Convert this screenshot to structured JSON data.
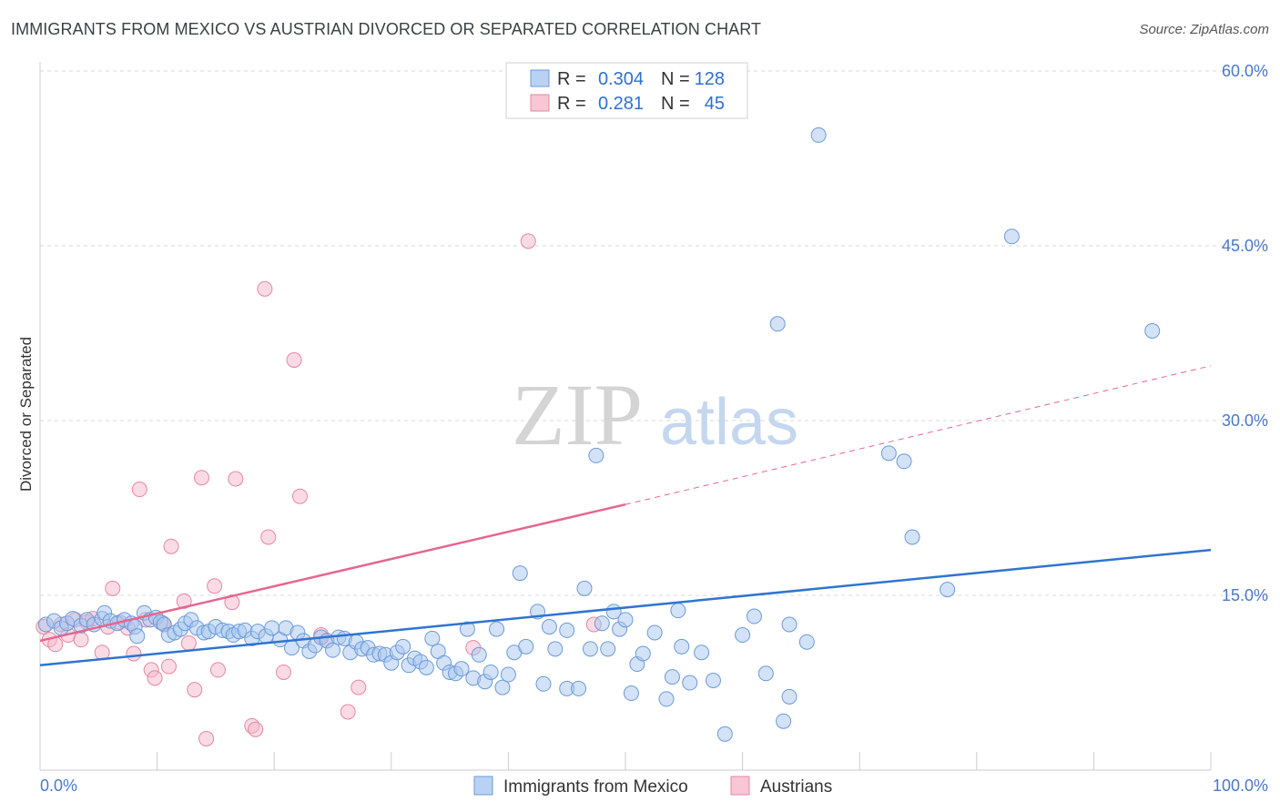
{
  "header": {
    "title": "IMMIGRANTS FROM MEXICO VS AUSTRIAN DIVORCED OR SEPARATED CORRELATION CHART",
    "source": "Source: ZipAtlas.com"
  },
  "watermark": {
    "zip": "ZIP",
    "atlas": "atlas"
  },
  "legend_top": [
    {
      "r_label": "R =",
      "r_value": "0.304",
      "n_label": "N =",
      "n_value": "128"
    },
    {
      "r_label": "R =",
      "r_value": "0.281",
      "n_label": "N =",
      "n_value": "45"
    }
  ],
  "legend_bottom": [
    "Immigrants from Mexico",
    "Austrians"
  ],
  "colors": {
    "blue_fill": "#a8c6f0",
    "blue_stroke": "#6b9ad8",
    "blue_line": "#2f74d0",
    "pink_fill": "#f6b8cb",
    "pink_stroke": "#e6879f",
    "pink_line": "#e5668f",
    "tick_text": "#4a78c9",
    "grid": "#d9d9d9"
  },
  "chart_data": {
    "type": "scatter",
    "title": "IMMIGRANTS FROM MEXICO VS AUSTRIAN DIVORCED OR SEPARATED CORRELATION CHART",
    "xlabel": "",
    "ylabel": "Divorced or Separated",
    "xlim": [
      0,
      100
    ],
    "ylim": [
      0,
      60
    ],
    "x_tick_labels": [
      "0.0%",
      "100.0%"
    ],
    "y_tick_values": [
      15,
      30,
      45,
      60
    ],
    "y_tick_labels": [
      "15.0%",
      "30.0%",
      "45.0%",
      "60.0%"
    ],
    "grid": true,
    "legend_position": "top-center",
    "series": [
      {
        "name": "Immigrants from Mexico",
        "R": 0.304,
        "N": 128,
        "trend": {
          "x0": 0,
          "y0": 9.0,
          "x1": 100,
          "y1": 18.9
        },
        "points": [
          [
            0.5,
            12.5
          ],
          [
            1.2,
            12.8
          ],
          [
            1.8,
            12.2
          ],
          [
            2.3,
            12.6
          ],
          [
            2.8,
            13.0
          ],
          [
            3.5,
            12.4
          ],
          [
            4.0,
            12.9
          ],
          [
            4.6,
            12.5
          ],
          [
            5.3,
            13.0
          ],
          [
            5.5,
            13.5
          ],
          [
            6.0,
            12.8
          ],
          [
            6.6,
            12.6
          ],
          [
            7.2,
            12.9
          ],
          [
            7.8,
            12.6
          ],
          [
            8.1,
            12.3
          ],
          [
            8.3,
            11.5
          ],
          [
            8.9,
            13.5
          ],
          [
            9.4,
            12.9
          ],
          [
            9.9,
            13.1
          ],
          [
            10.3,
            12.7
          ],
          [
            10.6,
            12.5
          ],
          [
            11.0,
            11.6
          ],
          [
            11.5,
            11.8
          ],
          [
            12.0,
            12.1
          ],
          [
            12.4,
            12.6
          ],
          [
            12.9,
            12.9
          ],
          [
            13.4,
            12.2
          ],
          [
            14.0,
            11.8
          ],
          [
            14.4,
            11.9
          ],
          [
            15.0,
            12.3
          ],
          [
            15.6,
            12.0
          ],
          [
            16.1,
            11.9
          ],
          [
            16.5,
            11.6
          ],
          [
            17.0,
            11.9
          ],
          [
            17.5,
            12.0
          ],
          [
            18.1,
            11.3
          ],
          [
            18.6,
            11.9
          ],
          [
            19.3,
            11.5
          ],
          [
            19.8,
            12.2
          ],
          [
            20.5,
            11.2
          ],
          [
            21.0,
            12.2
          ],
          [
            21.5,
            10.5
          ],
          [
            22.0,
            11.8
          ],
          [
            22.5,
            11.1
          ],
          [
            23.0,
            10.2
          ],
          [
            23.5,
            10.7
          ],
          [
            24.0,
            11.4
          ],
          [
            24.5,
            11.1
          ],
          [
            25.0,
            10.3
          ],
          [
            25.5,
            11.4
          ],
          [
            26.0,
            11.3
          ],
          [
            26.5,
            10.1
          ],
          [
            27.0,
            11.0
          ],
          [
            27.5,
            10.4
          ],
          [
            28.0,
            10.5
          ],
          [
            28.5,
            9.9
          ],
          [
            29.0,
            10.0
          ],
          [
            29.5,
            9.9
          ],
          [
            30.0,
            9.2
          ],
          [
            30.5,
            10.1
          ],
          [
            31.0,
            10.6
          ],
          [
            31.5,
            9.0
          ],
          [
            32.0,
            9.6
          ],
          [
            32.5,
            9.3
          ],
          [
            33.0,
            8.8
          ],
          [
            33.5,
            11.3
          ],
          [
            34.0,
            10.2
          ],
          [
            34.5,
            9.2
          ],
          [
            35.0,
            8.4
          ],
          [
            35.5,
            8.3
          ],
          [
            36.0,
            8.7
          ],
          [
            36.5,
            12.1
          ],
          [
            37.0,
            7.9
          ],
          [
            37.5,
            9.9
          ],
          [
            38.0,
            7.6
          ],
          [
            38.5,
            8.4
          ],
          [
            39.0,
            12.1
          ],
          [
            39.5,
            7.1
          ],
          [
            40.0,
            8.2
          ],
          [
            40.5,
            10.1
          ],
          [
            41.0,
            16.9
          ],
          [
            41.5,
            10.6
          ],
          [
            42.5,
            13.6
          ],
          [
            43.0,
            7.4
          ],
          [
            43.5,
            12.3
          ],
          [
            44.0,
            10.4
          ],
          [
            45.0,
            12.0
          ],
          [
            45.0,
            7.0
          ],
          [
            46.0,
            7.0
          ],
          [
            46.5,
            15.6
          ],
          [
            47.0,
            10.4
          ],
          [
            47.5,
            27.0
          ],
          [
            48.0,
            12.6
          ],
          [
            48.5,
            10.4
          ],
          [
            49.0,
            13.6
          ],
          [
            49.5,
            12.1
          ],
          [
            50.0,
            12.9
          ],
          [
            50.5,
            6.6
          ],
          [
            51.0,
            9.1
          ],
          [
            51.5,
            10.0
          ],
          [
            52.5,
            11.8
          ],
          [
            53.5,
            6.1
          ],
          [
            54.0,
            8.0
          ],
          [
            54.5,
            13.7
          ],
          [
            54.8,
            10.6
          ],
          [
            55.5,
            7.5
          ],
          [
            56.5,
            10.1
          ],
          [
            57.5,
            7.7
          ],
          [
            58.5,
            3.1
          ],
          [
            60.0,
            11.6
          ],
          [
            61.0,
            13.2
          ],
          [
            62.0,
            8.3
          ],
          [
            63.0,
            38.3
          ],
          [
            63.5,
            4.2
          ],
          [
            64.0,
            12.5
          ],
          [
            64.0,
            6.3
          ],
          [
            65.5,
            11.0
          ],
          [
            66.5,
            54.5
          ],
          [
            72.5,
            27.2
          ],
          [
            73.8,
            26.5
          ],
          [
            74.5,
            20.0
          ],
          [
            77.5,
            15.5
          ],
          [
            83.0,
            45.8
          ],
          [
            95.0,
            37.7
          ]
        ]
      },
      {
        "name": "Austrians",
        "R": 0.281,
        "N": 45,
        "trend_solid": {
          "x0": 0,
          "y0": 11.1,
          "x1": 50,
          "y1": 22.8
        },
        "trend_dashed": {
          "x0": 50,
          "y0": 22.8,
          "x1": 100,
          "y1": 34.7
        },
        "points": [
          [
            0.3,
            12.3
          ],
          [
            0.8,
            11.2
          ],
          [
            1.3,
            10.8
          ],
          [
            1.8,
            12.5
          ],
          [
            2.4,
            11.6
          ],
          [
            3.0,
            12.9
          ],
          [
            3.5,
            11.2
          ],
          [
            4.0,
            12.7
          ],
          [
            4.5,
            13.0
          ],
          [
            5.3,
            10.1
          ],
          [
            5.8,
            12.3
          ],
          [
            6.2,
            15.6
          ],
          [
            6.8,
            12.7
          ],
          [
            7.5,
            12.2
          ],
          [
            8.0,
            10.0
          ],
          [
            8.5,
            24.1
          ],
          [
            9.0,
            12.9
          ],
          [
            9.5,
            8.6
          ],
          [
            9.8,
            7.9
          ],
          [
            10.5,
            12.6
          ],
          [
            11.0,
            8.9
          ],
          [
            11.2,
            19.2
          ],
          [
            12.3,
            14.5
          ],
          [
            12.7,
            10.9
          ],
          [
            13.2,
            6.9
          ],
          [
            13.8,
            25.1
          ],
          [
            14.2,
            2.7
          ],
          [
            14.9,
            15.8
          ],
          [
            15.2,
            8.6
          ],
          [
            16.4,
            14.4
          ],
          [
            16.7,
            25.0
          ],
          [
            18.1,
            3.8
          ],
          [
            18.4,
            3.5
          ],
          [
            19.2,
            41.3
          ],
          [
            19.5,
            20.0
          ],
          [
            20.8,
            8.4
          ],
          [
            21.7,
            35.2
          ],
          [
            22.2,
            23.5
          ],
          [
            24.0,
            11.6
          ],
          [
            24.5,
            11.1
          ],
          [
            26.3,
            5.0
          ],
          [
            27.2,
            7.1
          ],
          [
            37.0,
            10.5
          ],
          [
            41.7,
            45.4
          ],
          [
            47.3,
            12.5
          ]
        ]
      }
    ]
  }
}
